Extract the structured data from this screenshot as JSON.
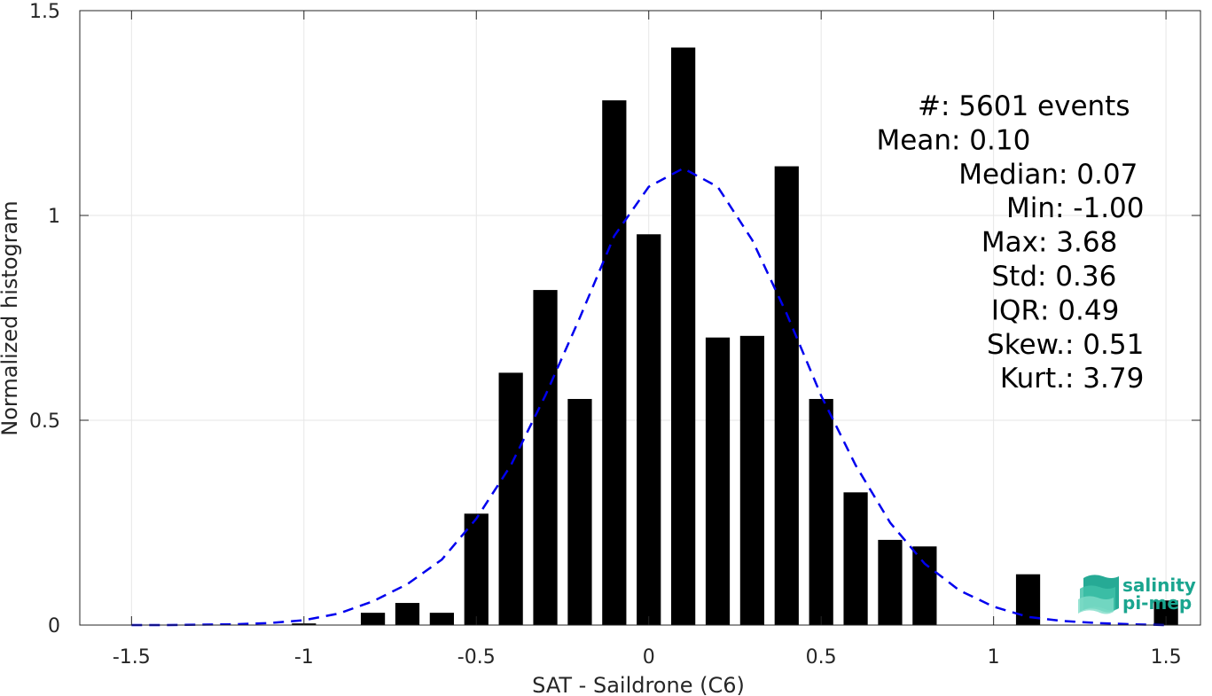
{
  "chart_data": {
    "type": "bar",
    "xlabel": "SAT - Saildrone (C6)",
    "ylabel": "Normalized histogram",
    "xlim": [
      -1.65,
      1.6
    ],
    "ylim": [
      0,
      1.5
    ],
    "grid": true,
    "x_ticks": [
      -1.5,
      -1,
      -0.5,
      0,
      0.5,
      1,
      1.5
    ],
    "x_tick_labels": [
      "-1.5",
      "-1",
      "-0.5",
      "0",
      "0.5",
      "1",
      "1.5"
    ],
    "y_ticks": [
      0,
      0.5,
      1,
      1.5
    ],
    "y_tick_labels": [
      "0",
      "0.5",
      "1",
      "1.5"
    ],
    "bar_width": 0.07,
    "bars": [
      {
        "x": -1.0,
        "y": 0.004
      },
      {
        "x": -0.8,
        "y": 0.03
      },
      {
        "x": -0.7,
        "y": 0.054
      },
      {
        "x": -0.6,
        "y": 0.03
      },
      {
        "x": -0.5,
        "y": 0.272
      },
      {
        "x": -0.4,
        "y": 0.616
      },
      {
        "x": -0.3,
        "y": 0.818
      },
      {
        "x": -0.2,
        "y": 0.552
      },
      {
        "x": -0.1,
        "y": 1.281
      },
      {
        "x": 0.0,
        "y": 0.954
      },
      {
        "x": 0.1,
        "y": 1.41
      },
      {
        "x": 0.2,
        "y": 0.702
      },
      {
        "x": 0.3,
        "y": 0.706
      },
      {
        "x": 0.4,
        "y": 1.12
      },
      {
        "x": 0.5,
        "y": 0.552
      },
      {
        "x": 0.6,
        "y": 0.324
      },
      {
        "x": 0.7,
        "y": 0.208
      },
      {
        "x": 0.8,
        "y": 0.192
      },
      {
        "x": 1.1,
        "y": 0.124
      },
      {
        "x": 1.5,
        "y": 0.06
      }
    ],
    "fit_curve": {
      "style": "dashed",
      "color": "#0000ee",
      "points": [
        [
          -1.5,
          0.0
        ],
        [
          -1.4,
          0.0
        ],
        [
          -1.3,
          0.001
        ],
        [
          -1.2,
          0.002
        ],
        [
          -1.1,
          0.005
        ],
        [
          -1.0,
          0.012
        ],
        [
          -0.9,
          0.028
        ],
        [
          -0.8,
          0.058
        ],
        [
          -0.7,
          0.1
        ],
        [
          -0.6,
          0.16
        ],
        [
          -0.5,
          0.26
        ],
        [
          -0.4,
          0.39
        ],
        [
          -0.3,
          0.56
        ],
        [
          -0.2,
          0.75
        ],
        [
          -0.1,
          0.95
        ],
        [
          0.0,
          1.07
        ],
        [
          0.1,
          1.115
        ],
        [
          0.2,
          1.07
        ],
        [
          0.3,
          0.94
        ],
        [
          0.4,
          0.76
        ],
        [
          0.5,
          0.56
        ],
        [
          0.6,
          0.39
        ],
        [
          0.7,
          0.25
        ],
        [
          0.8,
          0.15
        ],
        [
          0.9,
          0.085
        ],
        [
          1.0,
          0.045
        ],
        [
          1.1,
          0.02
        ],
        [
          1.2,
          0.01
        ],
        [
          1.3,
          0.005
        ],
        [
          1.4,
          0.002
        ],
        [
          1.5,
          0.0
        ]
      ]
    },
    "bar_color": "#000000",
    "stats": [
      {
        "label": "#  ",
        "value": ": 5601 events"
      },
      {
        "label": "Mean ",
        "value": ": 0.10"
      },
      {
        "label": "Median ",
        "value": ": 0.07"
      },
      {
        "label": "Min ",
        "value": ": -1.00"
      },
      {
        "label": "Max ",
        "value": ": 3.68"
      },
      {
        "label": "Std ",
        "value": ": 0.36"
      },
      {
        "label": "IQR ",
        "value": ": 0.49"
      },
      {
        "label": "Skew. ",
        "value": ": 0.51"
      },
      {
        "label": "Kurt. ",
        "value": ": 3.79"
      }
    ]
  },
  "logo": {
    "line1": "salinity",
    "line2": "pi-mep",
    "color": "#1aa58f"
  }
}
